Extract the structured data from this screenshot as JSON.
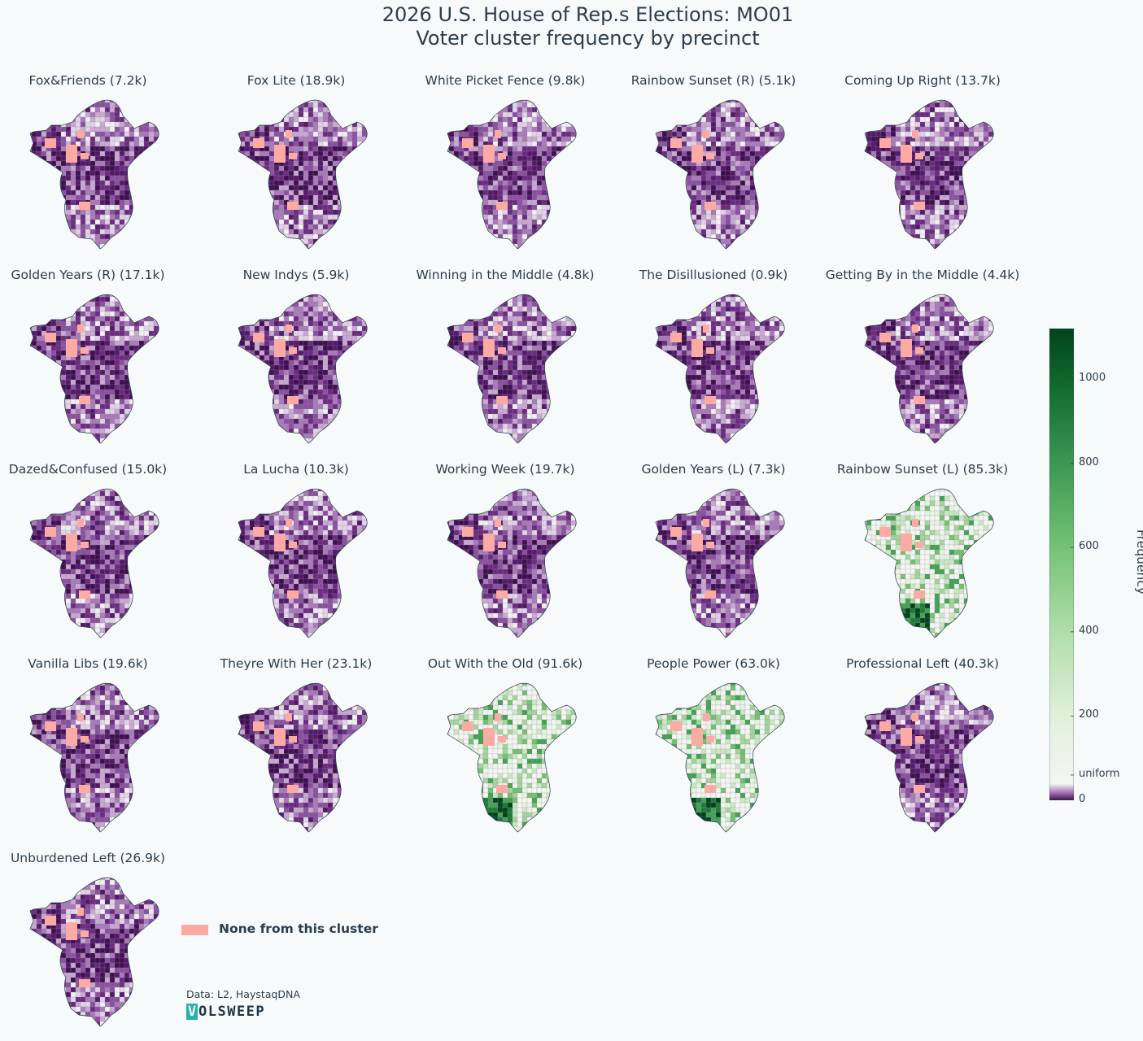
{
  "title_line1": "2026 U.S. House of Rep.s Elections: MO01",
  "title_line2": "Voter cluster frequency by precinct",
  "legend_label": "None from this cluster",
  "source": "Data: L2, HaystaqDNA",
  "logo_first": "V",
  "logo_rest": "OLSWEEP",
  "colors": {
    "background": "#f6fafb",
    "none_color": "#fbaba3",
    "below_uniform": "#3f0f4f",
    "uniform": "#f5f5f3",
    "max_green": "#00441b"
  },
  "chart_data": {
    "type": "choropleth-small-multiples",
    "colorbar": {
      "label": "Frequency",
      "ticks": [
        {
          "value": 0,
          "label": "0"
        },
        {
          "value": 60,
          "label": "uniform"
        },
        {
          "value": 200,
          "label": "200"
        },
        {
          "value": 400,
          "label": "400"
        },
        {
          "value": 600,
          "label": "600"
        },
        {
          "value": 800,
          "label": "800"
        },
        {
          "value": 1000,
          "label": "1000"
        }
      ],
      "range": [
        0,
        1120
      ]
    },
    "panels": [
      {
        "title": "Fox&Friends (7.2k)",
        "total_k": 7.2,
        "style": "purple"
      },
      {
        "title": "Fox Lite (18.9k)",
        "total_k": 18.9,
        "style": "purple"
      },
      {
        "title": "White Picket Fence (9.8k)",
        "total_k": 9.8,
        "style": "purple"
      },
      {
        "title": "Rainbow Sunset (R) (5.1k)",
        "total_k": 5.1,
        "style": "purple"
      },
      {
        "title": "Coming Up Right (13.7k)",
        "total_k": 13.7,
        "style": "purple"
      },
      {
        "title": "Golden Years (R) (17.1k)",
        "total_k": 17.1,
        "style": "purple"
      },
      {
        "title": "New Indys (5.9k)",
        "total_k": 5.9,
        "style": "purple"
      },
      {
        "title": "Winning in the Middle (4.8k)",
        "total_k": 4.8,
        "style": "purple"
      },
      {
        "title": "The Disillusioned (0.9k)",
        "total_k": 0.9,
        "style": "purple"
      },
      {
        "title": "Getting By in the Middle (4.4k)",
        "total_k": 4.4,
        "style": "purple"
      },
      {
        "title": "Dazed&Confused (15.0k)",
        "total_k": 15.0,
        "style": "purple"
      },
      {
        "title": "La Lucha (10.3k)",
        "total_k": 10.3,
        "style": "purple"
      },
      {
        "title": "Working Week (19.7k)",
        "total_k": 19.7,
        "style": "purple"
      },
      {
        "title": "Golden Years (L) (7.3k)",
        "total_k": 7.3,
        "style": "purple"
      },
      {
        "title": "Rainbow Sunset (L) (85.3k)",
        "total_k": 85.3,
        "style": "green"
      },
      {
        "title": "Vanilla Libs (19.6k)",
        "total_k": 19.6,
        "style": "purple"
      },
      {
        "title": "Theyre With Her (23.1k)",
        "total_k": 23.1,
        "style": "purple"
      },
      {
        "title": "Out With the Old (91.6k)",
        "total_k": 91.6,
        "style": "green"
      },
      {
        "title": "People Power (63.0k)",
        "total_k": 63.0,
        "style": "green"
      },
      {
        "title": "Professional Left (40.3k)",
        "total_k": 40.3,
        "style": "purple"
      },
      {
        "title": "Unburdened Left (26.9k)",
        "total_k": 26.9,
        "style": "purple"
      }
    ]
  }
}
